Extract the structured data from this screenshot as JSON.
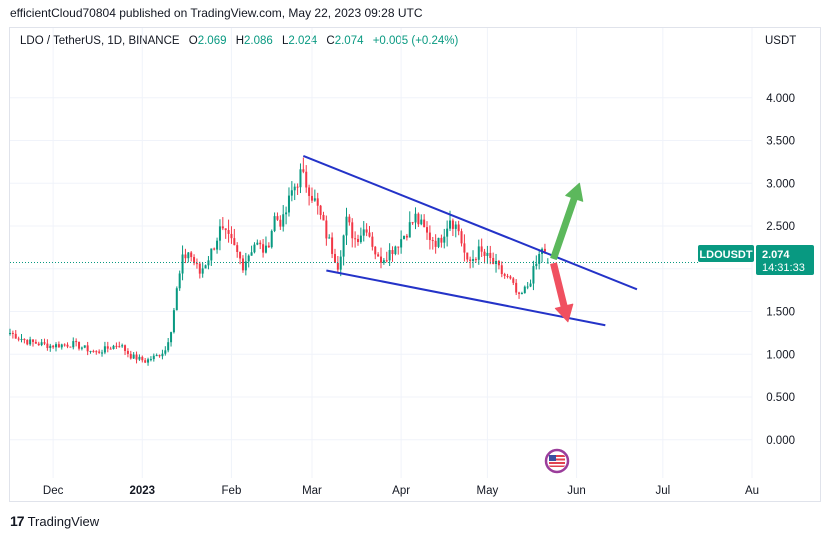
{
  "header": {
    "published": "efficientCloud70804 published on TradingView.com, May 22, 2023 09:28 UTC"
  },
  "legend": {
    "symbol": "LDO / TetherUS, 1D, BINANCE",
    "open_label": "O",
    "open": "2.069",
    "high_label": "H",
    "high": "2.086",
    "low_label": "L",
    "low": "2.024",
    "close_label": "C",
    "close": "2.074",
    "change": "+0.005 (+0.24%)"
  },
  "currency": "USDT",
  "price_tag": {
    "ticker": "LDOUSDT",
    "price": "2.074",
    "countdown": "14:31:33"
  },
  "footer": {
    "brand": "TradingView"
  },
  "colors": {
    "up": "#089981",
    "down": "#f23645",
    "trendline": "#2433c8",
    "arrow_up": "#5cb85c",
    "arrow_down": "#f05060"
  },
  "chart_data": {
    "type": "candlestick",
    "y_ticks": [
      "4.000",
      "3.500",
      "3.000",
      "2.500",
      "2.000",
      "1.500",
      "1.000",
      "0.500",
      "0.000"
    ],
    "y_tick_values": [
      4.0,
      3.5,
      3.0,
      2.5,
      2.0,
      1.5,
      1.0,
      0.5,
      0.0
    ],
    "x_ticks": [
      "Dec",
      "2023",
      "Feb",
      "Mar",
      "Apr",
      "May",
      "Jun",
      "Jul",
      "Au"
    ],
    "x_tick_dates": [
      "2022-12-01",
      "2023-01-01",
      "2023-02-01",
      "2023-03-01",
      "2023-04-01",
      "2023-05-01",
      "2023-06-01",
      "2023-07-01",
      "2023-08-01"
    ],
    "ylim": [
      -0.4,
      4.5
    ],
    "xlim": [
      "2022-11-16",
      "2023-08-01"
    ],
    "last_price": 2.074,
    "close_path": [
      [
        "2022-11-16",
        1.25
      ],
      [
        "2022-11-22",
        1.15
      ],
      [
        "2022-11-30",
        1.1
      ],
      [
        "2022-12-08",
        1.12
      ],
      [
        "2022-12-16",
        1.02
      ],
      [
        "2022-12-24",
        1.12
      ],
      [
        "2022-12-28",
        0.98
      ],
      [
        "2023-01-02",
        0.92
      ],
      [
        "2023-01-06",
        0.98
      ],
      [
        "2023-01-09",
        1.05
      ],
      [
        "2023-01-11",
        1.3
      ],
      [
        "2023-01-13",
        1.75
      ],
      [
        "2023-01-15",
        2.1
      ],
      [
        "2023-01-17",
        2.2
      ],
      [
        "2023-01-21",
        1.95
      ],
      [
        "2023-01-25",
        2.2
      ],
      [
        "2023-01-28",
        2.45
      ],
      [
        "2023-02-01",
        2.3
      ],
      [
        "2023-02-05",
        2.05
      ],
      [
        "2023-02-09",
        2.3
      ],
      [
        "2023-02-13",
        2.2
      ],
      [
        "2023-02-16",
        2.6
      ],
      [
        "2023-02-19",
        2.55
      ],
      [
        "2023-02-22",
        2.9
      ],
      [
        "2023-02-25",
        3.1
      ],
      [
        "2023-02-28",
        2.95
      ],
      [
        "2023-03-03",
        2.7
      ],
      [
        "2023-03-06",
        2.4
      ],
      [
        "2023-03-10",
        2.05
      ],
      [
        "2023-03-13",
        2.55
      ],
      [
        "2023-03-16",
        2.35
      ],
      [
        "2023-03-20",
        2.5
      ],
      [
        "2023-03-24",
        2.1
      ],
      [
        "2023-03-28",
        2.2
      ],
      [
        "2023-04-01",
        2.35
      ],
      [
        "2023-04-06",
        2.6
      ],
      [
        "2023-04-10",
        2.4
      ],
      [
        "2023-04-14",
        2.3
      ],
      [
        "2023-04-18",
        2.6
      ],
      [
        "2023-04-21",
        2.45
      ],
      [
        "2023-04-24",
        2.05
      ],
      [
        "2023-04-28",
        2.2
      ],
      [
        "2023-05-02",
        2.1
      ],
      [
        "2023-05-06",
        1.95
      ],
      [
        "2023-05-09",
        1.85
      ],
      [
        "2023-05-12",
        1.65
      ],
      [
        "2023-05-15",
        1.8
      ],
      [
        "2023-05-18",
        2.05
      ],
      [
        "2023-05-20",
        2.25
      ],
      [
        "2023-05-22",
        2.074
      ]
    ],
    "trendlines": [
      {
        "name": "upper",
        "from": [
          "2023-02-26",
          3.32
        ],
        "to": [
          "2023-06-22",
          1.76
        ]
      },
      {
        "name": "lower",
        "from": [
          "2023-03-06",
          1.98
        ],
        "to": [
          "2023-06-11",
          1.34
        ]
      }
    ],
    "arrows": [
      {
        "name": "bullish",
        "from": [
          "2023-05-24",
          2.12
        ],
        "to": [
          "2023-06-02",
          3.0
        ]
      },
      {
        "name": "bearish",
        "from": [
          "2023-05-24",
          2.06
        ],
        "to": [
          "2023-05-29",
          1.38
        ]
      }
    ]
  }
}
